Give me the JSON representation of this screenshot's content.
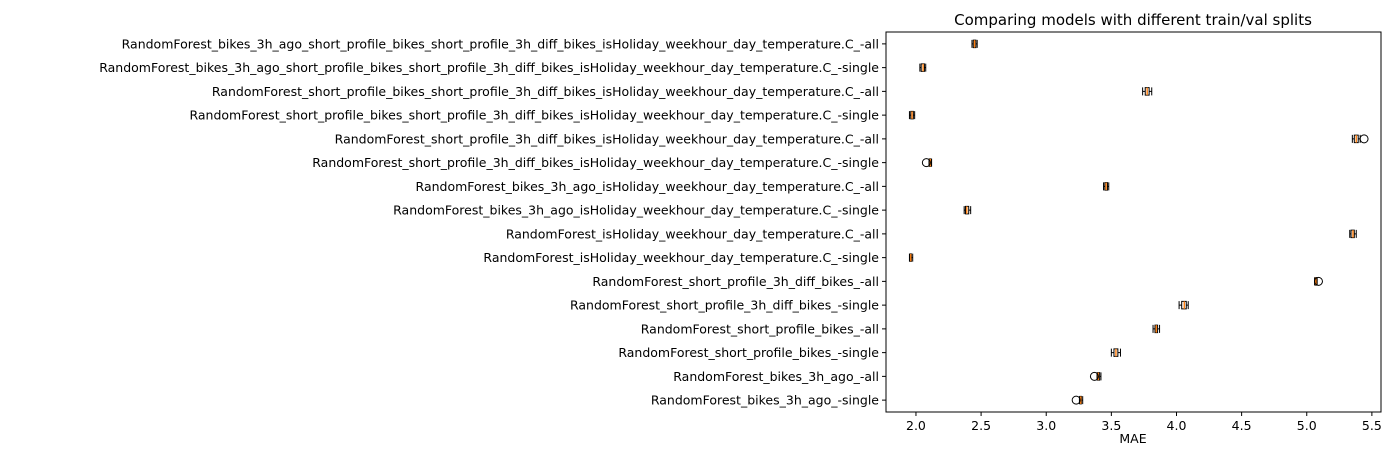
{
  "chart_data": {
    "type": "boxplot",
    "orientation": "horizontal",
    "title": "Comparing models with different train/val splits",
    "xlabel": "MAE",
    "ylabel": "",
    "xlim": [
      1.77,
      5.57
    ],
    "xticks": [
      2.0,
      2.5,
      3.0,
      3.5,
      4.0,
      4.5,
      5.0,
      5.5
    ],
    "xtick_labels": [
      "2.0",
      "2.5",
      "3.0",
      "3.5",
      "4.0",
      "4.5",
      "5.0",
      "5.5"
    ],
    "grid": false,
    "colors": {
      "box": "#000000",
      "median": "#ff7f0e",
      "flier": "#000000",
      "background": "#ffffff"
    },
    "boxes": [
      {
        "label": "RandomForest_bikes_3h_ago_short_profile_bikes_short_profile_3h_diff_bikes_isHoliday_weekhour_day_temperature.C_-all",
        "whislo": 2.43,
        "q1": 2.44,
        "med": 2.45,
        "q3": 2.46,
        "whishi": 2.47,
        "fliers": []
      },
      {
        "label": "RandomForest_bikes_3h_ago_short_profile_bikes_short_profile_3h_diff_bikes_isHoliday_weekhour_day_temperature.C_-single",
        "whislo": 2.03,
        "q1": 2.04,
        "med": 2.055,
        "q3": 2.065,
        "whishi": 2.075,
        "fliers": []
      },
      {
        "label": "RandomForest_short_profile_bikes_short_profile_3h_diff_bikes_isHoliday_weekhour_day_temperature.C_-all",
        "whislo": 3.74,
        "q1": 3.76,
        "med": 3.775,
        "q3": 3.79,
        "whishi": 3.81,
        "fliers": []
      },
      {
        "label": "RandomForest_short_profile_bikes_short_profile_3h_diff_bikes_isHoliday_weekhour_day_temperature.C_-single",
        "whislo": 1.95,
        "q1": 1.96,
        "med": 1.97,
        "q3": 1.98,
        "whishi": 1.99,
        "fliers": []
      },
      {
        "label": "RandomForest_short_profile_3h_diff_bikes_isHoliday_weekhour_day_temperature.C_-all",
        "whislo": 5.35,
        "q1": 5.365,
        "med": 5.38,
        "q3": 5.395,
        "whishi": 5.41,
        "fliers": [
          5.44
        ]
      },
      {
        "label": "RandomForest_short_profile_3h_diff_bikes_isHoliday_weekhour_day_temperature.C_-single",
        "whislo": 2.1,
        "q1": 2.105,
        "med": 2.11,
        "q3": 2.115,
        "whishi": 2.12,
        "fliers": [
          2.08
        ]
      },
      {
        "label": "RandomForest_bikes_3h_ago_isHoliday_weekhour_day_temperature.C_-all",
        "whislo": 3.44,
        "q1": 3.45,
        "med": 3.46,
        "q3": 3.47,
        "whishi": 3.48,
        "fliers": []
      },
      {
        "label": "RandomForest_bikes_3h_ago_isHoliday_weekhour_day_temperature.C_-single",
        "whislo": 2.37,
        "q1": 2.38,
        "med": 2.39,
        "q3": 2.405,
        "whishi": 2.42,
        "fliers": []
      },
      {
        "label": "RandomForest_isHoliday_weekhour_day_temperature.C_-all",
        "whislo": 5.33,
        "q1": 5.34,
        "med": 5.355,
        "q3": 5.365,
        "whishi": 5.38,
        "fliers": []
      },
      {
        "label": "RandomForest_isHoliday_weekhour_day_temperature.C_-single",
        "whislo": 1.95,
        "q1": 1.955,
        "med": 1.96,
        "q3": 1.965,
        "whishi": 1.975,
        "fliers": []
      },
      {
        "label": "RandomForest_short_profile_3h_diff_bikes_-all",
        "whislo": 5.06,
        "q1": 5.065,
        "med": 5.07,
        "q3": 5.075,
        "whishi": 5.08,
        "fliers": [
          5.09
        ]
      },
      {
        "label": "RandomForest_short_profile_3h_diff_bikes_-single",
        "whislo": 4.02,
        "q1": 4.04,
        "med": 4.06,
        "q3": 4.075,
        "whishi": 4.09,
        "fliers": []
      },
      {
        "label": "RandomForest_short_profile_bikes_-all",
        "whislo": 3.82,
        "q1": 3.835,
        "med": 3.845,
        "q3": 3.855,
        "whishi": 3.87,
        "fliers": []
      },
      {
        "label": "RandomForest_short_profile_bikes_-single",
        "whislo": 3.5,
        "q1": 3.52,
        "med": 3.535,
        "q3": 3.55,
        "whishi": 3.57,
        "fliers": []
      },
      {
        "label": "RandomForest_bikes_3h_ago_-all",
        "whislo": 3.39,
        "q1": 3.395,
        "med": 3.4,
        "q3": 3.41,
        "whishi": 3.42,
        "fliers": [
          3.37
        ]
      },
      {
        "label": "RandomForest_bikes_3h_ago_-single",
        "whislo": 3.255,
        "q1": 3.26,
        "med": 3.265,
        "q3": 3.27,
        "whishi": 3.28,
        "fliers": [
          3.23
        ]
      }
    ]
  }
}
